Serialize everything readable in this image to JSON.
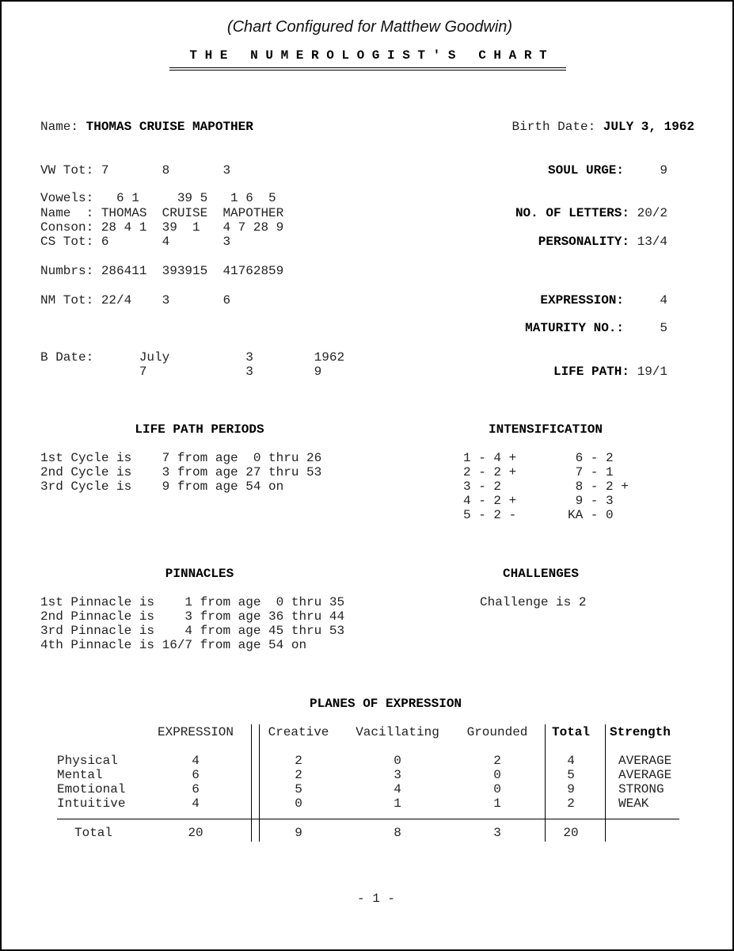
{
  "header": {
    "configured_for": "(Chart Configured for Matthew Goodwin)",
    "title": "T H E   N U M E R O L O G I S T ' S   C H A R T"
  },
  "identity": {
    "name_label": "Name:",
    "name": "THOMAS CRUISE MAPOTHER",
    "birth_label": "Birth Date:",
    "birth_date": "JULY 3, 1962"
  },
  "name_grid": [
    "VW Tot: 7       8       3",
    "Vowels:   6 1     39 5   1 6  5",
    "Name  : THOMAS  CRUISE  MAPOTHER",
    "Conson: 28 4 1  39  1   4 7 28 9",
    "CS Tot: 6       4       3",
    "Numbrs: 286411  393915  41762859",
    "NM Tot: 22/4    3       6",
    "B Date:      July          3        1962",
    "             7             3        9"
  ],
  "summary": [
    {
      "label": "SOUL URGE:",
      "value": "9"
    },
    {
      "label": "NO. OF LETTERS:",
      "value": "20/2"
    },
    {
      "label": "PERSONALITY:",
      "value": "13/4"
    },
    {
      "label": "EXPRESSION:",
      "value": "4"
    },
    {
      "label": "MATURITY NO.:",
      "value": "5"
    },
    {
      "label": "LIFE PATH:",
      "value": "19/1"
    }
  ],
  "life_path_periods": {
    "heading": "LIFE PATH PERIODS",
    "lines": [
      "1st Cycle is    7 from age  0 thru 26",
      "2nd Cycle is    3 from age 27 thru 53",
      "3rd Cycle is    9 from age 54 on"
    ]
  },
  "intensification": {
    "heading": "INTENSIFICATION",
    "left": [
      "1 - 4 +",
      "2 - 2 +",
      "3 - 2",
      "4 - 2 +",
      "5 - 2 -"
    ],
    "right": [
      " 6 - 2",
      " 7 - 1",
      " 8 - 2 +",
      " 9 - 3",
      "KA - 0"
    ]
  },
  "pinnacles": {
    "heading": "PINNACLES",
    "lines": [
      "1st Pinnacle is    1 from age  0 thru 35",
      "2nd Pinnacle is    3 from age 36 thru 44",
      "3rd Pinnacle is    4 from age 45 thru 53",
      "4th Pinnacle is 16/7 from age 54 on"
    ]
  },
  "challenges": {
    "heading": "CHALLENGES",
    "text": "Challenge is 2"
  },
  "planes": {
    "heading": "PLANES OF EXPRESSION",
    "columns": [
      "EXPRESSION",
      "Creative",
      "Vacillating",
      "Grounded",
      "Total",
      "Strength"
    ],
    "rows": [
      {
        "label": "Physical",
        "values": [
          "4",
          "2",
          "0",
          "2",
          "4",
          "AVERAGE"
        ]
      },
      {
        "label": "Mental",
        "values": [
          "6",
          "2",
          "3",
          "0",
          "5",
          "AVERAGE"
        ]
      },
      {
        "label": "Emotional",
        "values": [
          "6",
          "5",
          "4",
          "0",
          "9",
          "STRONG"
        ]
      },
      {
        "label": "Intuitive",
        "values": [
          "4",
          "0",
          "1",
          "1",
          "2",
          "WEAK"
        ]
      }
    ],
    "total": {
      "label": "Total",
      "values": [
        "20",
        "9",
        "8",
        "3",
        "20"
      ]
    }
  },
  "footer": {
    "page": "- 1 -"
  }
}
